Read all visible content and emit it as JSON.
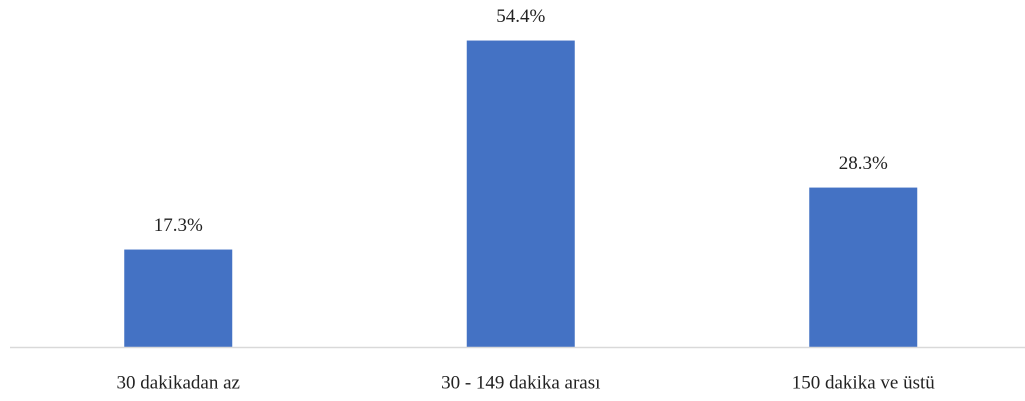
{
  "chart_data": {
    "type": "bar",
    "categories": [
      "30 dakikadan az",
      "30 - 149 dakika arası",
      "150 dakika ve üstü"
    ],
    "values": [
      17.3,
      54.4,
      28.3
    ],
    "value_labels": [
      "17.3%",
      "54.4%",
      "28.3%"
    ],
    "color": "#4472c4",
    "ylim": [
      0,
      60
    ],
    "grid": false
  }
}
